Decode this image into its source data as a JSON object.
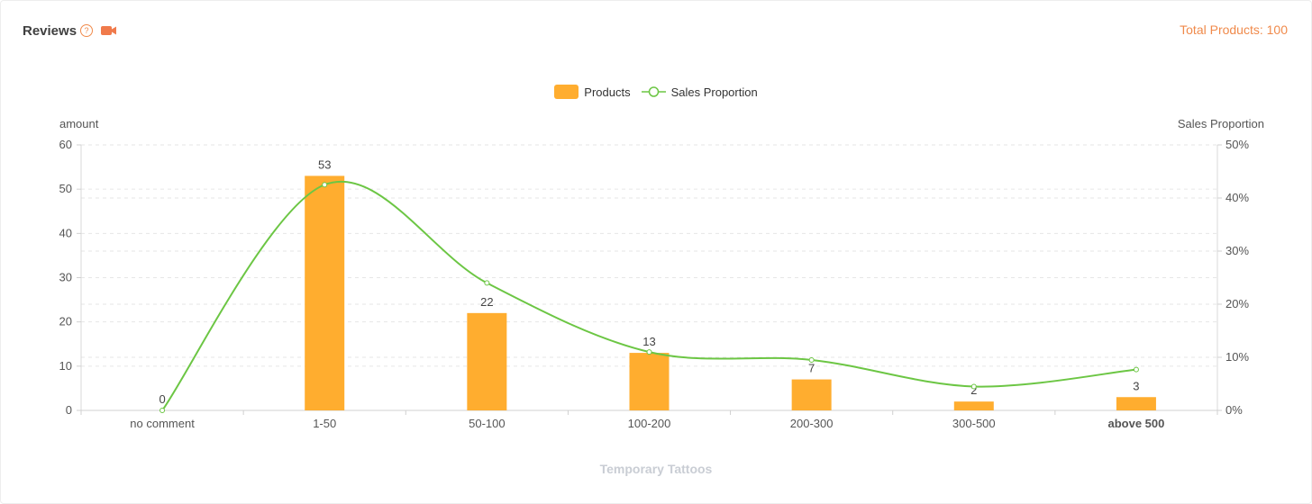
{
  "header": {
    "title": "Reviews",
    "help_icon": "question-circle-icon",
    "video_icon": "video-camera-icon",
    "total_label": "Total Products: 100"
  },
  "colors": {
    "bar": "#ffad2f",
    "line": "#6cc644",
    "accent": "#f08a4b",
    "grid": "#e6e6e6"
  },
  "chart_data": {
    "type": "bar",
    "categories": [
      "no comment",
      "1-50",
      "50-100",
      "100-200",
      "200-300",
      "300-500",
      "above 500"
    ],
    "series": [
      {
        "name": "Products",
        "type": "bar",
        "axis": "left",
        "values": [
          0,
          53,
          22,
          13,
          7,
          2,
          3
        ]
      },
      {
        "name": "Sales Proportion",
        "type": "line",
        "smooth": true,
        "axis": "right",
        "values": [
          0,
          42.5,
          24,
          11,
          9.5,
          4.5,
          7.7
        ]
      }
    ],
    "ylabel_left": "amount",
    "ylabel_right": "Sales Proportion",
    "xlabel": "Temporary Tattoos",
    "ylim_left": [
      0,
      60
    ],
    "yticks_left": [
      "0",
      "10",
      "20",
      "30",
      "40",
      "50",
      "60"
    ],
    "ylim_right": [
      0,
      50
    ],
    "yticks_right": [
      "0%",
      "10%",
      "20%",
      "30%",
      "40%",
      "50%"
    ],
    "grid": true,
    "legend_position": "top-center"
  }
}
